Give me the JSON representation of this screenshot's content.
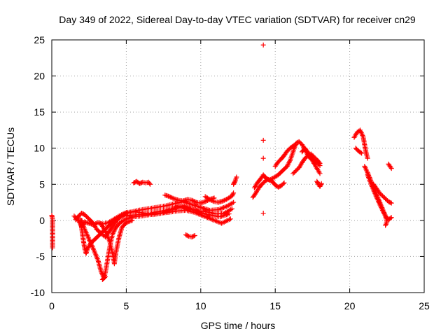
{
  "chart_data": {
    "type": "scatter",
    "title": "Day 349 of 2022, Sidereal Day-to-day VTEC variation (SDTVAR) for receiver cn29",
    "xlabel": "GPS time / hours",
    "ylabel": "SDTVAR / TECUs",
    "xlim": [
      0,
      25
    ],
    "ylim": [
      -10,
      25
    ],
    "x_ticks": [
      0,
      5,
      10,
      15,
      20,
      25
    ],
    "y_ticks": [
      -10,
      -5,
      0,
      5,
      10,
      15,
      20,
      25
    ],
    "x_tick_labels": [
      "0",
      "5",
      "10",
      "15",
      "20",
      "25"
    ],
    "y_tick_labels": [
      "-10",
      "-5",
      "0",
      "5",
      "10",
      "15",
      "20",
      "25"
    ],
    "grid": true,
    "marker": "+",
    "series": [
      {
        "name": "SDTVAR",
        "color": "#ff0000",
        "segments": [
          [
            [
              0.0,
              0.7
            ],
            [
              0.05,
              0.2
            ],
            [
              0.05,
              -1.2
            ],
            [
              0.05,
              -3.8
            ]
          ],
          [
            [
              1.5,
              0.6
            ],
            [
              1.7,
              0.2
            ],
            [
              1.9,
              -0.4
            ],
            [
              2.0,
              -0.9
            ],
            [
              2.2,
              -0.2
            ],
            [
              2.5,
              -0.4
            ],
            [
              2.8,
              -0.6
            ],
            [
              3.1,
              -0.3
            ],
            [
              3.4,
              -0.5
            ],
            [
              3.8,
              -0.3
            ],
            [
              4.2,
              0.2
            ],
            [
              4.6,
              0.7
            ],
            [
              5.0,
              1.1
            ],
            [
              5.6,
              1.2
            ],
            [
              6.2,
              1.0
            ],
            [
              6.8,
              0.8
            ],
            [
              7.4,
              1.0
            ],
            [
              8.0,
              1.5
            ],
            [
              8.6,
              2.0
            ],
            [
              9.2,
              1.6
            ],
            [
              9.8,
              1.3
            ],
            [
              10.4,
              1.2
            ],
            [
              11.0,
              0.9
            ],
            [
              11.6,
              1.0
            ],
            [
              12.1,
              1.6
            ]
          ],
          [
            [
              1.6,
              0.1
            ],
            [
              1.8,
              0.6
            ],
            [
              2.0,
              1.0
            ],
            [
              2.2,
              0.8
            ],
            [
              2.4,
              0.4
            ],
            [
              2.6,
              0.0
            ],
            [
              2.8,
              -0.5
            ],
            [
              3.0,
              -1.2
            ],
            [
              3.3,
              -1.8
            ],
            [
              3.6,
              -2.3
            ],
            [
              3.9,
              -1.4
            ],
            [
              4.2,
              -0.5
            ],
            [
              4.5,
              0.3
            ],
            [
              4.8,
              0.8
            ],
            [
              5.2,
              1.1
            ],
            [
              5.8,
              1.4
            ],
            [
              6.4,
              1.6
            ],
            [
              7.0,
              1.8
            ],
            [
              7.6,
              2.0
            ],
            [
              8.2,
              2.3
            ],
            [
              8.8,
              2.6
            ],
            [
              9.4,
              2.2
            ],
            [
              10.0,
              1.8
            ],
            [
              10.6,
              1.4
            ],
            [
              11.2,
              1.5
            ],
            [
              11.8,
              2.0
            ],
            [
              12.2,
              2.5
            ]
          ],
          [
            [
              1.9,
              0.2
            ],
            [
              2.0,
              -1.0
            ],
            [
              2.1,
              -2.5
            ],
            [
              2.2,
              -3.8
            ],
            [
              2.3,
              -4.6
            ],
            [
              2.4,
              -3.9
            ],
            [
              2.6,
              -3.2
            ],
            [
              2.9,
              -2.6
            ],
            [
              3.2,
              -2.0
            ],
            [
              3.5,
              -1.4
            ],
            [
              3.8,
              -0.8
            ],
            [
              4.1,
              -0.2
            ],
            [
              4.4,
              0.3
            ],
            [
              4.8,
              0.6
            ],
            [
              5.3,
              0.7
            ],
            [
              5.9,
              0.8
            ],
            [
              6.5,
              0.9
            ],
            [
              7.1,
              1.2
            ],
            [
              7.7,
              1.4
            ],
            [
              8.3,
              1.7
            ],
            [
              8.9,
              1.9
            ],
            [
              9.5,
              1.5
            ],
            [
              10.1,
              1.0
            ],
            [
              10.7,
              0.7
            ],
            [
              11.3,
              0.5
            ],
            [
              11.9,
              0.9
            ]
          ],
          [
            [
              2.0,
              0.0
            ],
            [
              2.2,
              -1.2
            ],
            [
              2.5,
              -2.6
            ],
            [
              2.8,
              -4.0
            ],
            [
              3.1,
              -5.5
            ],
            [
              3.3,
              -7.0
            ],
            [
              3.5,
              -8.0
            ],
            [
              3.6,
              -7.2
            ],
            [
              3.7,
              -6.0
            ],
            [
              3.8,
              -4.8
            ],
            [
              3.9,
              -3.6
            ],
            [
              4.0,
              -2.6
            ],
            [
              4.1,
              -1.8
            ],
            [
              4.3,
              -1.0
            ],
            [
              4.6,
              -0.3
            ],
            [
              5.0,
              0.2
            ],
            [
              5.5,
              0.5
            ],
            [
              6.0,
              0.6
            ],
            [
              6.6,
              0.8
            ],
            [
              7.2,
              1.0
            ],
            [
              7.8,
              1.1
            ],
            [
              8.4,
              1.3
            ],
            [
              9.0,
              1.4
            ],
            [
              9.6,
              1.1
            ],
            [
              10.2,
              0.6
            ],
            [
              10.8,
              0.1
            ],
            [
              11.4,
              -0.4
            ],
            [
              12.0,
              0.2
            ]
          ],
          [
            [
              3.3,
              -0.5
            ],
            [
              3.6,
              -1.5
            ],
            [
              3.9,
              -3.0
            ],
            [
              4.1,
              -4.8
            ],
            [
              4.2,
              -6.0
            ],
            [
              4.3,
              -4.5
            ],
            [
              4.5,
              -2.5
            ],
            [
              4.7,
              -1.0
            ],
            [
              5.0,
              -0.3
            ],
            [
              5.4,
              0.0
            ]
          ],
          [
            [
              3.4,
              -8.2
            ],
            [
              3.5,
              -8.0
            ],
            [
              3.6,
              -7.8
            ]
          ],
          [
            [
              5.5,
              5.2
            ],
            [
              5.7,
              5.4
            ],
            [
              5.9,
              5.1
            ],
            [
              6.1,
              5.3
            ],
            [
              6.3,
              5.2
            ],
            [
              6.5,
              5.3
            ],
            [
              6.6,
              5.0
            ]
          ],
          [
            [
              7.6,
              3.5
            ],
            [
              7.9,
              3.3
            ],
            [
              8.2,
              3.0
            ],
            [
              8.5,
              2.8
            ],
            [
              8.8,
              2.7
            ],
            [
              9.1,
              2.9
            ],
            [
              9.4,
              2.8
            ],
            [
              9.7,
              2.5
            ],
            [
              10.0,
              2.4
            ],
            [
              10.3,
              2.6
            ],
            [
              10.6,
              2.9
            ],
            [
              10.9,
              3.1
            ]
          ],
          [
            [
              9.0,
              -2.0
            ],
            [
              9.2,
              -2.2
            ],
            [
              9.4,
              -2.3
            ],
            [
              9.6,
              -2.1
            ]
          ],
          [
            [
              10.3,
              3.3
            ],
            [
              10.6,
              2.9
            ],
            [
              10.9,
              2.6
            ],
            [
              11.2,
              2.5
            ],
            [
              11.5,
              2.7
            ],
            [
              11.8,
              3.0
            ],
            [
              12.1,
              3.4
            ],
            [
              12.2,
              3.8
            ]
          ],
          [
            [
              12.2,
              5.0
            ],
            [
              12.3,
              5.4
            ],
            [
              12.4,
              6.0
            ]
          ],
          [
            [
              13.5,
              3.2
            ],
            [
              13.7,
              3.8
            ],
            [
              13.9,
              4.5
            ],
            [
              14.1,
              5.0
            ],
            [
              14.3,
              5.4
            ],
            [
              14.5,
              5.7
            ],
            [
              14.8,
              5.4
            ],
            [
              15.0,
              4.9
            ],
            [
              15.2,
              4.6
            ],
            [
              15.4,
              4.8
            ],
            [
              15.6,
              5.2
            ]
          ],
          [
            [
              13.6,
              4.5
            ],
            [
              13.8,
              5.2
            ],
            [
              14.0,
              5.7
            ],
            [
              14.2,
              6.3
            ],
            [
              14.4,
              5.8
            ],
            [
              14.6,
              5.6
            ],
            [
              14.9,
              5.9
            ],
            [
              15.2,
              6.3
            ],
            [
              15.5,
              6.9
            ],
            [
              15.8,
              7.5
            ],
            [
              16.0,
              8.3
            ],
            [
              16.2,
              9.5
            ],
            [
              16.4,
              10.7
            ],
            [
              16.6,
              10.9
            ],
            [
              16.8,
              10.5
            ],
            [
              17.0,
              9.8
            ],
            [
              17.2,
              9.0
            ],
            [
              17.4,
              8.5
            ],
            [
              17.6,
              8.3
            ],
            [
              17.8,
              8.0
            ],
            [
              18.0,
              7.6
            ]
          ],
          [
            [
              15.0,
              7.5
            ],
            [
              15.2,
              8.1
            ],
            [
              15.4,
              8.5
            ],
            [
              15.6,
              9.0
            ],
            [
              15.8,
              9.6
            ],
            [
              16.0,
              10.0
            ],
            [
              16.2,
              10.3
            ],
            [
              16.4,
              10.5
            ]
          ],
          [
            [
              16.2,
              6.5
            ],
            [
              16.4,
              6.9
            ],
            [
              16.6,
              7.3
            ],
            [
              16.8,
              8.0
            ],
            [
              17.0,
              8.6
            ],
            [
              17.2,
              9.0
            ],
            [
              17.4,
              9.2
            ],
            [
              17.6,
              8.8
            ],
            [
              17.8,
              8.4
            ],
            [
              18.0,
              7.9
            ]
          ],
          [
            [
              16.8,
              9.5
            ],
            [
              17.0,
              10.0
            ],
            [
              17.2,
              9.4
            ],
            [
              17.4,
              8.7
            ],
            [
              17.6,
              7.9
            ],
            [
              17.8,
              7.2
            ],
            [
              18.0,
              6.5
            ]
          ],
          [
            [
              17.8,
              5.4
            ],
            [
              17.9,
              5.0
            ],
            [
              18.0,
              4.7
            ],
            [
              18.1,
              5.1
            ]
          ],
          [
            [
              14.2,
              24.3
            ]
          ],
          [
            [
              14.2,
              11.1
            ]
          ],
          [
            [
              14.2,
              8.6
            ]
          ],
          [
            [
              14.2,
              1.0
            ]
          ],
          [
            [
              20.3,
              11.5
            ],
            [
              20.5,
              12.2
            ],
            [
              20.7,
              12.5
            ],
            [
              20.9,
              11.6
            ],
            [
              21.0,
              10.5
            ],
            [
              21.1,
              9.4
            ],
            [
              21.2,
              8.6
            ]
          ],
          [
            [
              20.4,
              10.0
            ],
            [
              20.6,
              9.6
            ],
            [
              20.8,
              9.3
            ]
          ],
          [
            [
              21.0,
              7.5
            ],
            [
              21.2,
              6.6
            ],
            [
              21.4,
              5.6
            ],
            [
              21.6,
              4.6
            ],
            [
              21.8,
              3.6
            ],
            [
              22.0,
              2.6
            ],
            [
              22.2,
              1.6
            ],
            [
              22.4,
              0.6
            ],
            [
              22.6,
              0.1
            ],
            [
              22.8,
              0.4
            ]
          ],
          [
            [
              21.2,
              6.3
            ],
            [
              21.4,
              5.2
            ],
            [
              21.6,
              4.2
            ],
            [
              21.8,
              3.2
            ],
            [
              22.0,
              2.3
            ],
            [
              22.2,
              1.4
            ],
            [
              22.4,
              0.6
            ],
            [
              22.5,
              -0.2
            ],
            [
              22.4,
              -0.7
            ]
          ],
          [
            [
              21.6,
              5.0
            ],
            [
              21.8,
              4.4
            ],
            [
              22.0,
              3.8
            ],
            [
              22.2,
              3.4
            ],
            [
              22.4,
              3.0
            ],
            [
              22.6,
              2.6
            ],
            [
              22.8,
              2.4
            ]
          ],
          [
            [
              22.6,
              7.8
            ],
            [
              22.7,
              7.5
            ],
            [
              22.8,
              7.2
            ]
          ]
        ]
      }
    ]
  }
}
